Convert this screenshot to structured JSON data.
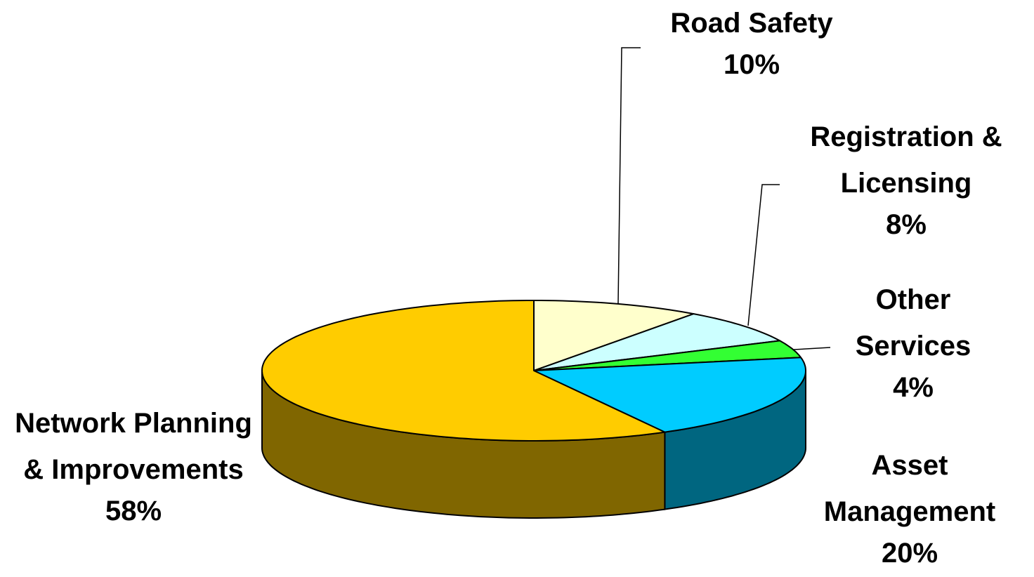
{
  "chart_data": {
    "type": "pie3d",
    "categories": [
      "Road Safety",
      "Registration & Licensing",
      "Other Services",
      "Asset Management",
      "Network Planning & Improvements"
    ],
    "values": [
      10,
      8,
      4,
      20,
      58
    ],
    "value_labels": [
      "10%",
      "8%",
      "4%",
      "20%",
      "58%"
    ],
    "colors": [
      "#ffffcc",
      "#ccffff",
      "#33ff33",
      "#00ccff",
      "#ffcc00"
    ]
  }
}
